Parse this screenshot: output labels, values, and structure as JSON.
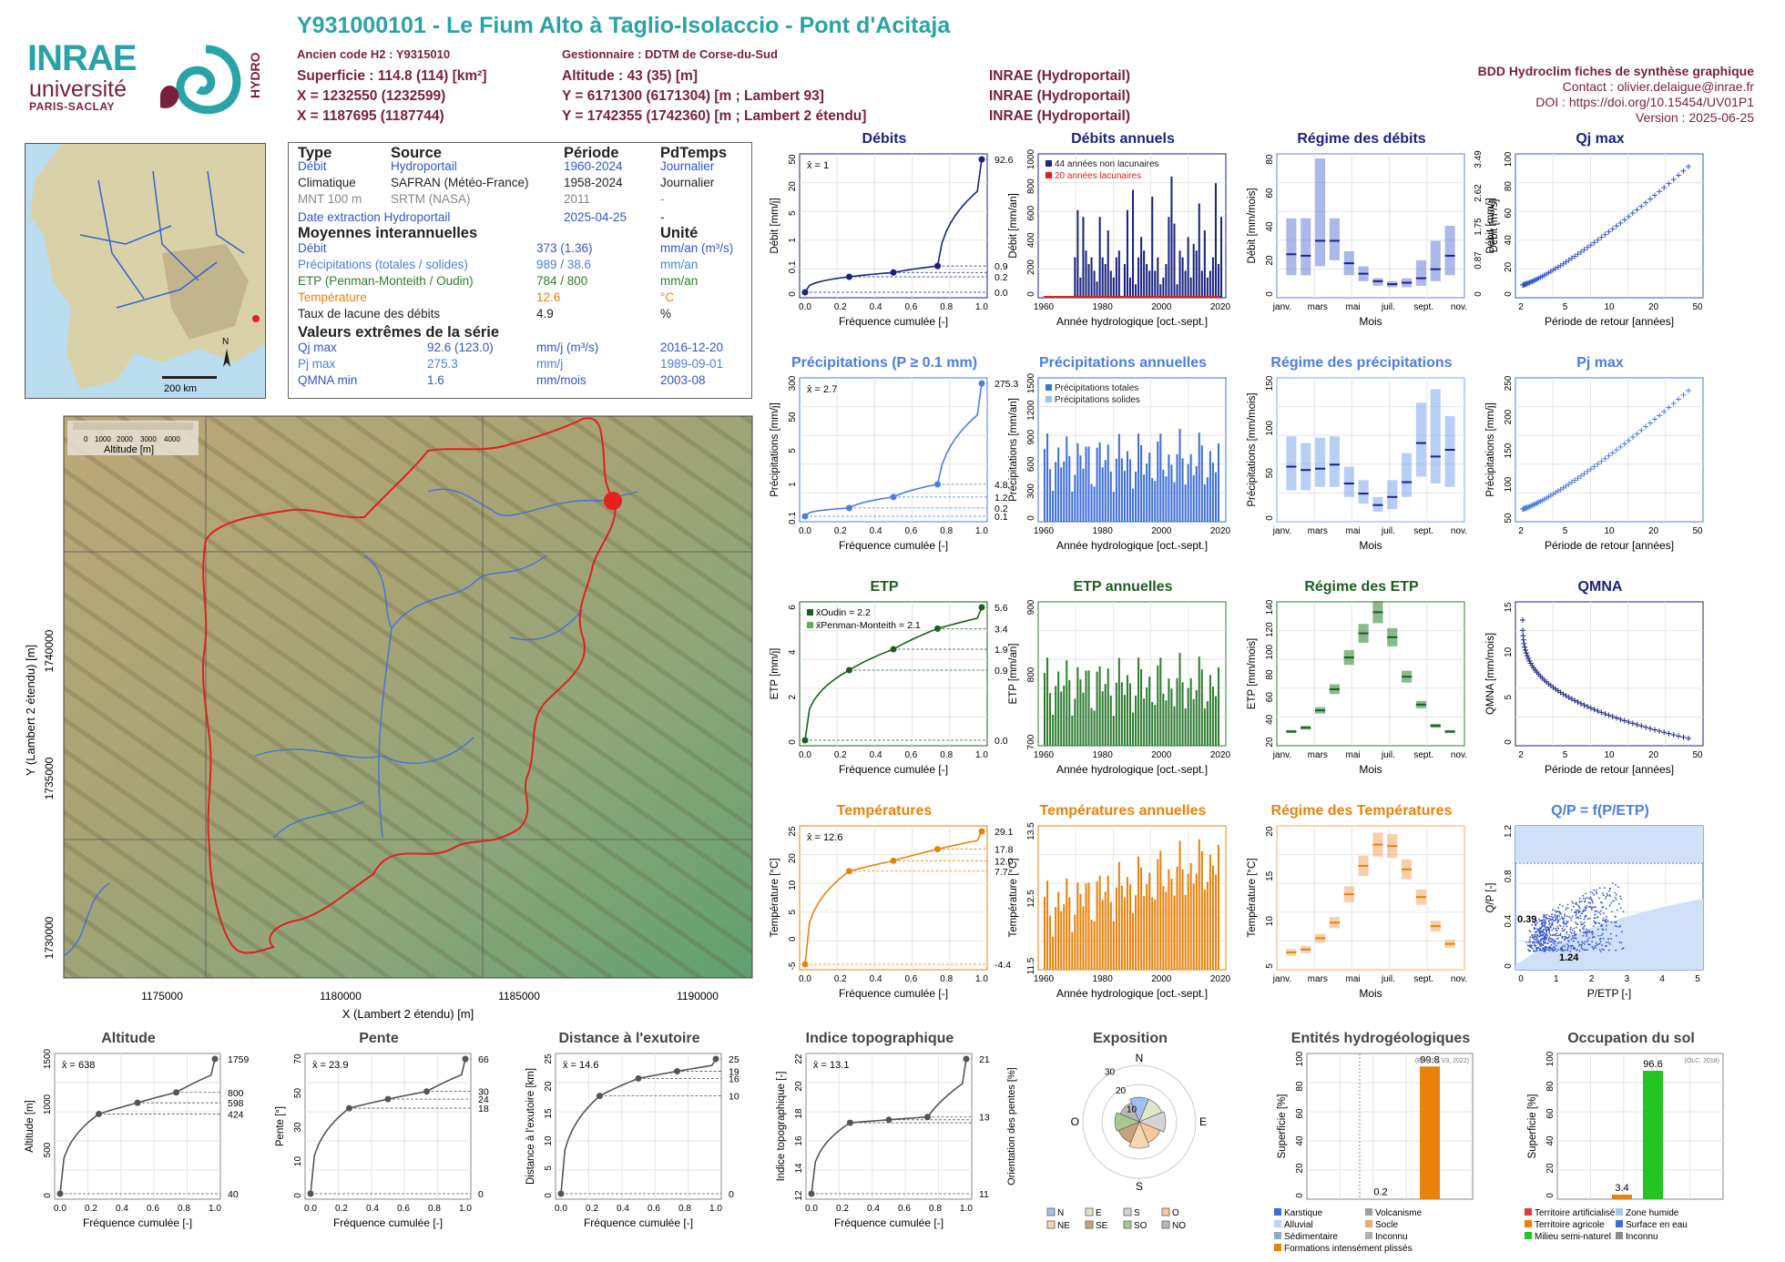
{
  "header": {
    "title": "Y931000101 - Le Fium Alto à Taglio-Isolaccio - Pont d'Acitaja",
    "ancien_code": "Ancien code H2 : Y9315010",
    "gestionnaire": "Gestionnaire : DDTM de Corse-du-Sud",
    "superficie": "Superficie : 114.8 (114) [km²]",
    "altitude": "Altitude : 43 (35) [m]",
    "x93": "X = 1232550 (1232599)",
    "y93": "Y = 6171300 (6171304) [m ; Lambert 93]",
    "x2": "X = 1187695 (1187744)",
    "y2": "Y = 1742355 (1742360) [m ; Lambert 2 étendu]",
    "src1": "INRAE (Hydroportail)",
    "src2": "INRAE (Hydroportail)",
    "src3": "INRAE (Hydroportail)"
  },
  "logos": {
    "inrae": "INRAE",
    "universite": "université",
    "paris_saclay": "PARIS-SACLAY",
    "hydro": "HYDRO"
  },
  "bdd": {
    "title": "BDD Hydroclim fiches de synthèse graphique",
    "contact": "Contact : olivier.delaigue@inrae.fr",
    "doi": "DOI : https://doi.org/10.15454/UV01P1",
    "version": "Version : 2025-06-25"
  },
  "info": {
    "headers": [
      "Type",
      "Source",
      "Période",
      "PdTemps"
    ],
    "rows": [
      {
        "type": "Débit",
        "source": "Hydroportail",
        "periode": "1960-2024",
        "pdt": "Journalier",
        "color": "#3355cc"
      },
      {
        "type": "Climatique",
        "source": "SAFRAN (Météo-France)",
        "periode": "1958-2024",
        "pdt": "Journalier",
        "color": "#222222"
      },
      {
        "type": "MNT 100 m",
        "source": "SRTM (NASA)",
        "periode": "2011",
        "pdt": "-",
        "color": "#888888"
      }
    ],
    "extraction": {
      "label": "Date extraction Hydroportail",
      "value": "2025-04-25",
      "dash": "-"
    },
    "moyennes_title": "Moyennes interannuelles",
    "unite_title": "Unité",
    "moyennes": [
      {
        "label": "Débit",
        "value": "373 (1.36)",
        "unit": "mm/an (m³/s)",
        "color": "#3355cc"
      },
      {
        "label": "Précipitations (totales / solides)",
        "value": "989 / 38.6",
        "unit": "mm/an",
        "color": "#4a7ee0"
      },
      {
        "label": "ETP (Penman-Monteith / Oudin)",
        "value": "784 / 800",
        "unit": "mm/an",
        "color": "#2d7d2d"
      },
      {
        "label": "Température",
        "value": "12.6",
        "unit": "°C",
        "color": "#e8820c"
      },
      {
        "label": "Taux de lacune des débits",
        "value": "4.9",
        "unit": "%",
        "color": "#222222"
      }
    ],
    "extremes_title": "Valeurs extrêmes de la série",
    "extremes": [
      {
        "label": "Qj max",
        "value": "92.6 (123.0)",
        "unit": "mm/j (m³/s)",
        "date": "2016-12-20",
        "color": "#3355cc"
      },
      {
        "label": "Pj max",
        "value": "275.3",
        "unit": "mm/j",
        "date": "1989-09-01",
        "color": "#4a7ee0"
      },
      {
        "label": "QMNA min",
        "value": "1.6",
        "unit": "mm/mois",
        "date": "2003-08",
        "color": "#3355cc"
      }
    ]
  },
  "minimap": {
    "scale_label": "200 km",
    "north": "N"
  },
  "map": {
    "legend_label": "Altitude [m]",
    "legend_ticks": [
      "0",
      "1000",
      "2000",
      "3000",
      "4000"
    ],
    "xticks": [
      "1175000",
      "1180000",
      "1185000",
      "1190000"
    ],
    "yticks": [
      "1730000",
      "1735000",
      "1740000"
    ],
    "xlabel": "X (Lambert 2 étendu) [m]",
    "ylabel": "Y (Lambert 2 étendu) [m]"
  },
  "chart_data": [
    {
      "id": "debits",
      "type": "line",
      "title": "Débits",
      "xlabel": "Fréquence cumulée [-]",
      "ylabel": "Débit [mm/j]",
      "mean_label": "x̄ = 1",
      "color": "#1a237e",
      "x": [
        0,
        0.25,
        0.5,
        0.75,
        1
      ],
      "y": [
        0.0,
        0.2,
        0.4,
        0.9,
        92.6
      ],
      "right_ticks": [
        "92.6",
        "0.9",
        "0.2",
        "0.0"
      ],
      "yticks": [
        "0",
        "0.1",
        "1",
        "5",
        "20",
        "50"
      ],
      "xticks": [
        "0.0",
        "0.2",
        "0.4",
        "0.6",
        "0.8",
        "1.0"
      ]
    },
    {
      "id": "debits_annuels",
      "type": "bar",
      "title": "Débits annuels",
      "xlabel": "Année hydrologique [oct.-sept.]",
      "ylabel": "Débit [mm/an]",
      "color": "#1a237e",
      "legend": [
        "44 années non lacunaires",
        "20 années lacunaires"
      ],
      "yticks": [
        "0",
        "200",
        "400",
        "600",
        "800",
        "1000"
      ],
      "xticks": [
        "1960",
        "1980",
        "2000",
        "2020"
      ],
      "x_range": [
        1960,
        2024
      ],
      "values": [
        0,
        0,
        0,
        0,
        0,
        0,
        0,
        0,
        0,
        0,
        0,
        300,
        650,
        150,
        600,
        350,
        250,
        300,
        200,
        120,
        600,
        300,
        250,
        500,
        200,
        150,
        300,
        350,
        0,
        250,
        650,
        150,
        800,
        100,
        300,
        450,
        350,
        250,
        200,
        750,
        200,
        300,
        100,
        150,
        250,
        600,
        900,
        550,
        100,
        350,
        300,
        200,
        450,
        150,
        400,
        350,
        700,
        200,
        500,
        150,
        200,
        300,
        850,
        250,
        600
      ]
    },
    {
      "id": "regime_debits",
      "type": "box",
      "title": "Régime des débits",
      "xlabel": "Mois",
      "ylabel": "Débit [mm/mois]",
      "ylabel2": "Débit [m³/s]",
      "color": "#6a7ed9",
      "categories": [
        "janv.",
        "févr.",
        "mars",
        "avr.",
        "mai",
        "juin",
        "juil.",
        "août",
        "sept.",
        "oct.",
        "nov.",
        "déc."
      ],
      "medians": [
        26,
        25,
        35,
        35,
        20,
        13,
        8,
        6,
        7,
        10,
        16,
        25
      ],
      "q1": [
        12,
        12,
        18,
        22,
        12,
        8,
        5,
        4,
        4,
        5,
        8,
        12
      ],
      "q3": [
        50,
        50,
        90,
        50,
        28,
        18,
        10,
        8,
        10,
        22,
        35,
        45
      ],
      "yticks": [
        "0",
        "20",
        "40",
        "60",
        "80"
      ],
      "right_ticks": [
        "0",
        "0.87",
        "1.75",
        "2.62",
        "3.49"
      ],
      "xticks": [
        "janv.",
        "mars",
        "mai",
        "juil.",
        "sept.",
        "nov."
      ]
    },
    {
      "id": "qj_max",
      "type": "scatter",
      "title": "Qj max",
      "xlabel": "Période de retour [années]",
      "ylabel": "Débit [mm/j]",
      "color": "#3355cc",
      "yticks": [
        "0",
        "20",
        "40",
        "60",
        "80",
        "100"
      ],
      "xticks": [
        "2",
        "5",
        "10",
        "20",
        "50"
      ]
    },
    {
      "id": "precip",
      "type": "line",
      "title": "Précipitations (P ≥ 0.1 mm)",
      "xlabel": "Fréquence cumulée [-]",
      "ylabel": "Précipitations [mm/j]",
      "mean_label": "x̄ = 2.7",
      "color": "#4a7ee0",
      "x": [
        0,
        0.25,
        0.5,
        0.75,
        1
      ],
      "y": [
        0.1,
        0.2,
        1.2,
        4.8,
        275.3
      ],
      "right_ticks": [
        "275.3",
        "4.8",
        "1.2",
        "0.2",
        "0.1"
      ],
      "yticks": [
        "0.1",
        "1",
        "5",
        "50",
        "300"
      ],
      "xticks": [
        "0.0",
        "0.2",
        "0.4",
        "0.6",
        "0.8",
        "1.0"
      ]
    },
    {
      "id": "precip_annuelles",
      "type": "bar",
      "title": "Précipitations annuelles",
      "xlabel": "Année hydrologique [oct.-sept.]",
      "ylabel": "Précipitations [mm/an]",
      "color": "#3f6fd8",
      "legend": [
        "Précipitations totales",
        "Précipitations solides"
      ],
      "yticks": [
        "0",
        "300",
        "600",
        "900",
        "1200",
        "1500"
      ],
      "xticks": [
        "1960",
        "1980",
        "2000",
        "2020"
      ]
    },
    {
      "id": "regime_precip",
      "type": "box",
      "title": "Régime des précipitations",
      "xlabel": "Mois",
      "ylabel": "Précipitations [mm/mois]",
      "color": "#7fa6ec",
      "categories": [
        "janv.",
        "févr.",
        "mars",
        "avr.",
        "mai",
        "juin",
        "juil.",
        "août",
        "sept.",
        "oct.",
        "nov.",
        "déc."
      ],
      "medians": [
        75,
        70,
        72,
        78,
        50,
        35,
        18,
        30,
        52,
        110,
        90,
        100
      ],
      "q1": [
        40,
        40,
        45,
        45,
        30,
        20,
        8,
        12,
        30,
        60,
        50,
        45
      ],
      "q3": [
        120,
        110,
        118,
        120,
        75,
        55,
        30,
        55,
        95,
        170,
        190,
        150
      ],
      "yticks": [
        "0",
        "50",
        "100",
        "150"
      ],
      "xticks": [
        "janv.",
        "mars",
        "mai",
        "juil.",
        "sept.",
        "nov."
      ]
    },
    {
      "id": "pj_max",
      "type": "scatter",
      "title": "Pj max",
      "xlabel": "Période de retour [années]",
      "ylabel": "Précipitations [mm/j]",
      "color": "#4a7ee0",
      "yticks": [
        "50",
        "100",
        "150",
        "200",
        "250"
      ],
      "xticks": [
        "2",
        "5",
        "10",
        "20",
        "50"
      ]
    },
    {
      "id": "etp",
      "type": "line",
      "title": "ETP",
      "xlabel": "Fréquence cumulée [-]",
      "ylabel": "ETP [mm/j]",
      "legend": [
        "x̄Oudin = 2.2",
        "x̄Penman-Monteith = 2.1"
      ],
      "color": "#1b5e20",
      "x": [
        0,
        0.25,
        0.5,
        0.75,
        1
      ],
      "y": [
        0.0,
        0.9,
        1.9,
        3.4,
        5.6
      ],
      "right_ticks": [
        "5.6",
        "3.4",
        "1.9",
        "0.9",
        "0.0"
      ],
      "yticks": [
        "0",
        "2",
        "4",
        "6"
      ],
      "xticks": [
        "0.0",
        "0.2",
        "0.4",
        "0.6",
        "0.8",
        "1.0"
      ]
    },
    {
      "id": "etp_annuelles",
      "type": "bar",
      "title": "ETP annuelles",
      "xlabel": "Année hydrologique [oct.-sept.]",
      "ylabel": "ETP [mm/an]",
      "color": "#2e7d32",
      "yticks": [
        "700",
        "800",
        "900"
      ],
      "xticks": [
        "1960",
        "1980",
        "2000",
        "2020"
      ]
    },
    {
      "id": "regime_etp",
      "type": "box",
      "title": "Régime des ETP",
      "xlabel": "Mois",
      "ylabel": "ETP [mm/mois]",
      "color": "#2e7d32",
      "categories": [
        "janv.",
        "févr.",
        "mars",
        "avr.",
        "mai",
        "juin",
        "juil.",
        "août",
        "sept.",
        "oct.",
        "nov.",
        "déc."
      ],
      "medians": [
        20,
        24,
        42,
        64,
        97,
        122,
        144,
        118,
        77,
        48,
        26,
        20
      ],
      "yticks": [
        "20",
        "40",
        "60",
        "80",
        "100",
        "120",
        "140"
      ],
      "xticks": [
        "janv.",
        "mars",
        "mai",
        "juil.",
        "sept.",
        "nov."
      ]
    },
    {
      "id": "qmna",
      "type": "scatter",
      "title": "QMNA",
      "xlabel": "Période de retour [années]",
      "ylabel": "QMNA [mm/mois]",
      "color": "#1a237e",
      "yticks": [
        "0",
        "5",
        "10",
        "15"
      ],
      "xticks": [
        "2",
        "5",
        "10",
        "20",
        "50"
      ]
    },
    {
      "id": "temperatures",
      "type": "line",
      "title": "Températures",
      "xlabel": "Fréquence cumulée [-]",
      "ylabel": "Température [°C]",
      "mean_label": "x̄ = 12.6",
      "color": "#e8820c",
      "x": [
        0,
        0.25,
        0.5,
        0.75,
        1
      ],
      "y": [
        -4.4,
        7.7,
        12.0,
        17.8,
        29.1
      ],
      "right_ticks": [
        "29.1",
        "17.8",
        "12.0",
        "7.7",
        "-4.4"
      ],
      "yticks": [
        "-5",
        "0",
        "5",
        "10",
        "20",
        "25"
      ],
      "xticks": [
        "0.0",
        "0.2",
        "0.4",
        "0.6",
        "0.8",
        "1.0"
      ]
    },
    {
      "id": "temp_annuelles",
      "type": "bar",
      "title": "Températures annuelles",
      "xlabel": "Année hydrologique [oct.-sept.]",
      "ylabel": "Température [°C]",
      "color": "#e8820c",
      "yticks": [
        "11.5",
        "12.5",
        "13.5"
      ],
      "xticks": [
        "1960",
        "1980",
        "2000",
        "2020"
      ]
    },
    {
      "id": "regime_temp",
      "type": "box",
      "title": "Régime des Températures",
      "xlabel": "Mois",
      "ylabel": "Température [°C]",
      "color": "#f0a868",
      "categories": [
        "janv.",
        "févr.",
        "mars",
        "avr.",
        "mai",
        "juin",
        "juil.",
        "août",
        "sept.",
        "oct.",
        "nov.",
        "déc."
      ],
      "medians": [
        5.8,
        6.2,
        7.8,
        10,
        14,
        18,
        21,
        20.8,
        17.5,
        13.6,
        9.5,
        7
      ],
      "yticks": [
        "5",
        "10",
        "15",
        "20"
      ],
      "xticks": [
        "janv.",
        "mars",
        "mai",
        "juil.",
        "sept.",
        "nov."
      ]
    },
    {
      "id": "qp",
      "type": "scatter",
      "title": "Q/P = f(P/ETP)",
      "xlabel": "P/ETP [-]",
      "ylabel": "Q/P [-]",
      "color": "#3355cc",
      "annotations": [
        "0.39",
        "1.24"
      ],
      "yticks": [
        "0",
        "0.4",
        "0.8",
        "1.2"
      ],
      "xticks": [
        "0",
        "1",
        "2",
        "3",
        "4",
        "5"
      ]
    },
    {
      "id": "altitude",
      "type": "line",
      "title": "Altitude",
      "xlabel": "Fréquence cumulée [-]",
      "ylabel": "Altitude [m]",
      "mean_label": "x̄ = 638",
      "color": "#555555",
      "x": [
        0,
        0.25,
        0.5,
        0.75,
        1
      ],
      "y": [
        40,
        424,
        598,
        800,
        1759
      ],
      "right_ticks": [
        "1759",
        "800",
        "598",
        "424",
        "40"
      ],
      "yticks": [
        "0",
        "500",
        "1000",
        "1500"
      ],
      "xticks": [
        "0.0",
        "0.2",
        "0.4",
        "0.6",
        "0.8",
        "1.0"
      ]
    },
    {
      "id": "pente",
      "type": "line",
      "title": "Pente",
      "xlabel": "Fréquence cumulée [-]",
      "ylabel": "Pente [°]",
      "mean_label": "x̄ = 23.9",
      "color": "#555555",
      "x": [
        0,
        0.25,
        0.5,
        0.75,
        1
      ],
      "y": [
        0,
        18,
        24,
        30,
        66
      ],
      "right_ticks": [
        "66",
        "30",
        "24",
        "18",
        "0"
      ],
      "yticks": [
        "0",
        "10",
        "30",
        "50",
        "70"
      ],
      "xticks": [
        "0.0",
        "0.2",
        "0.4",
        "0.6",
        "0.8",
        "1.0"
      ]
    },
    {
      "id": "distance",
      "type": "line",
      "title": "Distance à l'exutoire",
      "xlabel": "Fréquence cumulée [-]",
      "ylabel": "Distance à l'exutoire [km]",
      "mean_label": "x̄ = 14.6",
      "color": "#555555",
      "x": [
        0,
        0.25,
        0.5,
        0.75,
        1
      ],
      "y": [
        0,
        10,
        16,
        19,
        25
      ],
      "right_ticks": [
        "25",
        "19",
        "16",
        "10",
        "0"
      ],
      "yticks": [
        "0",
        "5",
        "10",
        "15",
        "20",
        "25"
      ],
      "xticks": [
        "0.0",
        "0.2",
        "0.4",
        "0.6",
        "0.8",
        "1.0"
      ]
    },
    {
      "id": "indice",
      "type": "line",
      "title": "Indice topographique",
      "xlabel": "Fréquence cumulée [-]",
      "ylabel": "Indice topographique [-]",
      "mean_label": "x̄ = 13.1",
      "color": "#555555",
      "x": [
        0,
        0.25,
        0.5,
        0.75,
        1
      ],
      "y": [
        11,
        12.6,
        12.8,
        13,
        21
      ],
      "right_ticks": [
        "21",
        "13",
        "11"
      ],
      "yticks": [
        "12",
        "14",
        "16",
        "18",
        "20",
        "22"
      ],
      "xticks": [
        "0.0",
        "0.2",
        "0.4",
        "0.6",
        "0.8",
        "1.0"
      ]
    },
    {
      "id": "exposition",
      "type": "pie",
      "title": "Exposition",
      "ylabel": "Orientation des pentes [%]",
      "categories": [
        "N",
        "NE",
        "E",
        "SE",
        "S",
        "SO",
        "O",
        "NO"
      ],
      "colors": [
        "#9ec1ee",
        "#dde8c8",
        "#d4d4d4",
        "#f6c89a",
        "#f5d7ad",
        "#c4a27a",
        "#a8c890",
        "#b8b8b8"
      ],
      "ring_labels": [
        "10",
        "20",
        "30"
      ],
      "compass": [
        "N",
        "E",
        "S",
        "O"
      ]
    },
    {
      "id": "hydrogeo",
      "type": "bar",
      "title": "Entités hydrogéologiques",
      "ylabel": "Superficie [%]",
      "source": "(BDLISA V3, 2022)",
      "values": [
        0.2,
        99.8
      ],
      "value_labels": [
        "0.2",
        "99.8"
      ],
      "yticks": [
        "0",
        "20",
        "40",
        "60",
        "80",
        "100"
      ],
      "legend": [
        "Karstique",
        "Volcanisme",
        "Alluvial",
        "Socle",
        "Sédimentaire",
        "Inconnu",
        "Formations intensément plissés"
      ],
      "legend_colors": [
        "#3b6fd8",
        "#9e9e9e",
        "#b9d3f0",
        "#e8a870",
        "#8aa8c8",
        "#b0b0b0",
        "#e8820c"
      ]
    },
    {
      "id": "occupation",
      "type": "bar",
      "title": "Occupation du sol",
      "ylabel": "Superficie [%]",
      "source": "(OLC, 2018)",
      "values": [
        3.4,
        96.6
      ],
      "value_labels": [
        "3.4",
        "96.6"
      ],
      "yticks": [
        "0",
        "20",
        "40",
        "60",
        "80",
        "100"
      ],
      "legend": [
        "Territoire artificialisé",
        "Zone humide",
        "Territoire agricole",
        "Surface en eau",
        "Milieu semi-naturel",
        "Inconnu"
      ],
      "legend_colors": [
        "#e53935",
        "#9ec9e8",
        "#e8820c",
        "#3b6fd8",
        "#22c522",
        "#8a8a8a"
      ]
    }
  ]
}
